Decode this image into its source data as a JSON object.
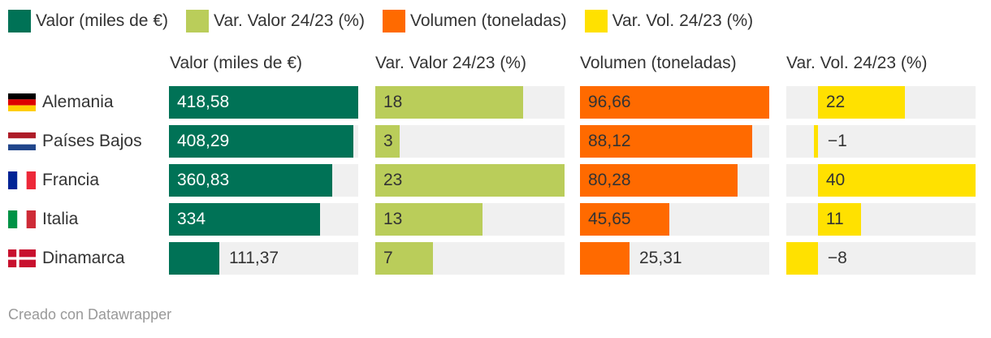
{
  "legend": [
    {
      "label": "Valor (miles de €)",
      "color": "#007256"
    },
    {
      "label": "Var. Valor 24/23 (%)",
      "color": "#bacd5a"
    },
    {
      "label": "Volumen (toneladas)",
      "color": "#ff6a00"
    },
    {
      "label": "Var. Vol. 24/23 (%)",
      "color": "#ffe100"
    }
  ],
  "chart_data": {
    "type": "bar",
    "categories": [
      "Alemania",
      "Países Bajos",
      "Francia",
      "Italia",
      "Dinamarca"
    ],
    "flags": [
      "flag-germany-icon",
      "flag-netherlands-icon",
      "flag-france-icon",
      "flag-italy-icon",
      "flag-denmark-icon"
    ],
    "series": [
      {
        "name": "Valor (miles de €)",
        "color": "#007256",
        "values": [
          418.58,
          408.29,
          360.83,
          334,
          111.37
        ],
        "labels": [
          "418,58",
          "408,29",
          "360,83",
          "334",
          "111,37"
        ],
        "range": [
          0,
          418.58
        ]
      },
      {
        "name": "Var. Valor 24/23 (%)",
        "color": "#bacd5a",
        "values": [
          18,
          3,
          23,
          13,
          7
        ],
        "labels": [
          "18",
          "3",
          "23",
          "13",
          "7"
        ],
        "range": [
          0,
          23
        ]
      },
      {
        "name": "Volumen (toneladas)",
        "color": "#ff6a00",
        "values": [
          96.66,
          88.12,
          80.28,
          45.65,
          25.31
        ],
        "labels": [
          "96,66",
          "88,12",
          "80,28",
          "45,65",
          "25,31"
        ],
        "range": [
          0,
          96.66
        ]
      },
      {
        "name": "Var. Vol. 24/23 (%)",
        "color": "#ffe100",
        "values": [
          22,
          -1,
          40,
          11,
          -8
        ],
        "labels": [
          "22",
          "−1",
          "40",
          "11",
          "−8"
        ],
        "range": [
          -8,
          40
        ]
      }
    ]
  },
  "footer": {
    "credit": "Creado con Datawrapper"
  }
}
